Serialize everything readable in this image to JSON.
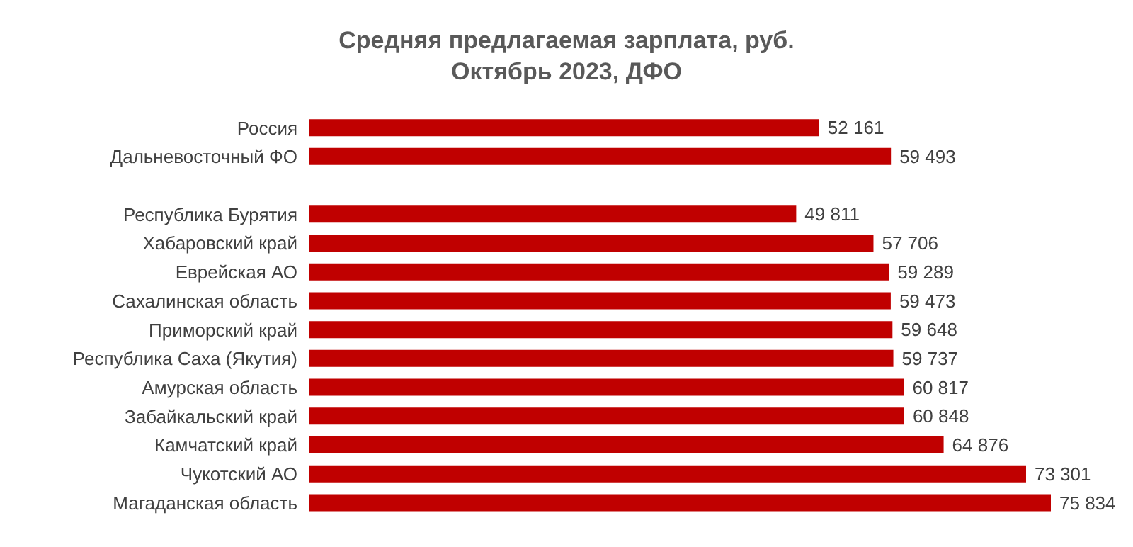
{
  "chart_data": {
    "type": "bar",
    "orientation": "horizontal",
    "title": "Средняя предлагаемая зарплата, руб.\nОктябрь 2023, ДФО",
    "categories": [
      "Россия",
      "Дальневосточный ФО",
      null,
      "Республика Бурятия",
      "Хабаровский край",
      "Еврейская АО",
      "Сахалинская область",
      "Приморский край",
      "Республика Саха (Якутия)",
      "Амурская область",
      "Забайкальский край",
      "Камчатский край",
      "Чукотский АО",
      "Магаданская область"
    ],
    "values": [
      52161,
      59493,
      null,
      49811,
      57706,
      59289,
      59473,
      59648,
      59737,
      60817,
      60848,
      64876,
      73301,
      75834
    ],
    "value_labels": [
      "52 161",
      "59 493",
      null,
      "49 811",
      "57 706",
      "59 289",
      "59 473",
      "59 648",
      "59 737",
      "60 817",
      "60 848",
      "64 876",
      "73 301",
      "75 834"
    ],
    "color": "#c00000",
    "tick_labels": "y"
  }
}
